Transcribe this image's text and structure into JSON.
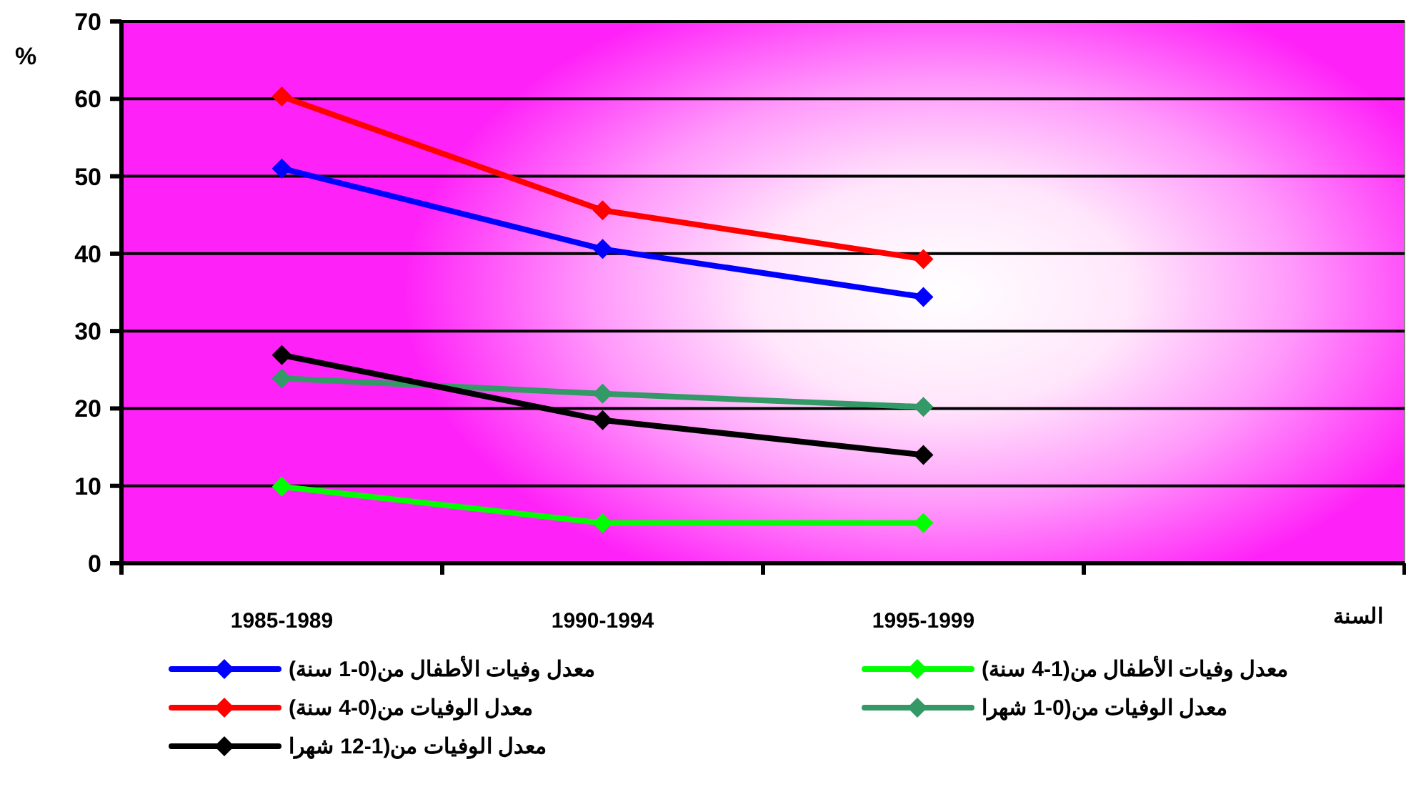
{
  "chart_data": {
    "type": "line",
    "ylabel": "%",
    "xlabel": "السنة",
    "categories": [
      "1985-1989",
      "1990-1994",
      "1995-1999",
      null
    ],
    "ylim": [
      0,
      70
    ],
    "yticks": [
      0,
      10,
      20,
      30,
      40,
      50,
      60,
      70
    ],
    "grid": "y",
    "legend": "bottom",
    "marker": "diamond",
    "line_style": "solid",
    "series": [
      {
        "name": "معدل وفيات الأطفال من(0-1 سنة)",
        "color": "#0000ff",
        "values": [
          51,
          40.6,
          34.4,
          null
        ]
      },
      {
        "name": "معدل وفيات الأطفال من(1-4 سنة)",
        "color": "#00ff00",
        "values": [
          9.9,
          5.2,
          5.2,
          null
        ]
      },
      {
        "name": "معدل الوفيات من(0-4 سنة)",
        "color": "#ff0000",
        "values": [
          60.3,
          45.6,
          39.3,
          null
        ]
      },
      {
        "name": "معدل الوفيات من(0-1 شهرا",
        "color": "#339966",
        "values": [
          23.9,
          21.9,
          20.2,
          null
        ]
      },
      {
        "name": "معدل الوفيات من(1-12 شهرا",
        "color": "#000000",
        "values": [
          26.9,
          18.5,
          14,
          null
        ]
      }
    ]
  }
}
